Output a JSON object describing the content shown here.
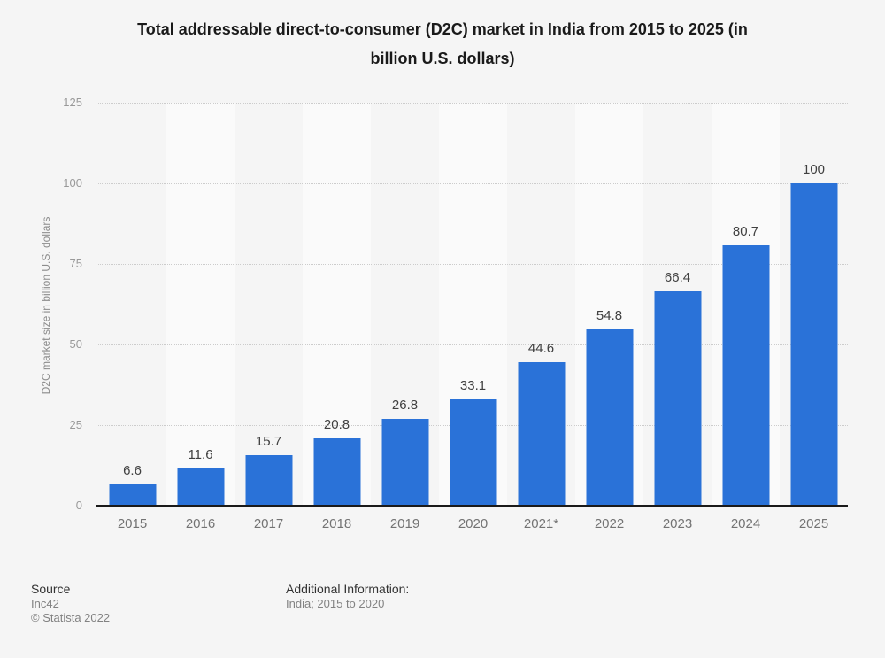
{
  "title": {
    "full": "Total addressable direct-to-consumer (D2C) market in India from 2015 to 2025 (in billion U.S. dollars)",
    "line1": "Total addressable direct-to-consumer (D2C) market in India from 2015 to 2025 (in",
    "line2": "billion U.S. dollars)"
  },
  "chart_data": {
    "type": "bar",
    "title": "Total addressable direct-to-consumer (D2C) market in India from 2015 to 2025 (in billion U.S. dollars)",
    "categories": [
      "2015",
      "2016",
      "2017",
      "2018",
      "2019",
      "2020",
      "2021*",
      "2022",
      "2023",
      "2024",
      "2025"
    ],
    "values": [
      6.6,
      11.6,
      15.7,
      20.8,
      26.8,
      33.1,
      44.6,
      54.8,
      66.4,
      80.7,
      100
    ],
    "value_labels": [
      "6.6",
      "11.6",
      "15.7",
      "20.8",
      "26.8",
      "33.1",
      "44.6",
      "54.8",
      "66.4",
      "80.7",
      "100"
    ],
    "xlabel": "",
    "ylabel": "D2C market size in billion U.S. dollars",
    "ylim": [
      0,
      125
    ],
    "yticks": [
      0,
      25,
      50,
      75,
      100,
      125
    ],
    "grid": "horizontal-dotted",
    "legend": "none",
    "bar_color": "#2a72d8",
    "stripe_colors": [
      "#f5f5f5",
      "#fafafa"
    ],
    "gridline_color": "#cccccc",
    "axis_line_color": "#1a1a1a"
  },
  "footer": {
    "source_label": "Source",
    "source_value": "Inc42",
    "copyright": "© Statista 2022",
    "additional_label": "Additional Information:",
    "additional_value": "India; 2015 to 2020"
  }
}
